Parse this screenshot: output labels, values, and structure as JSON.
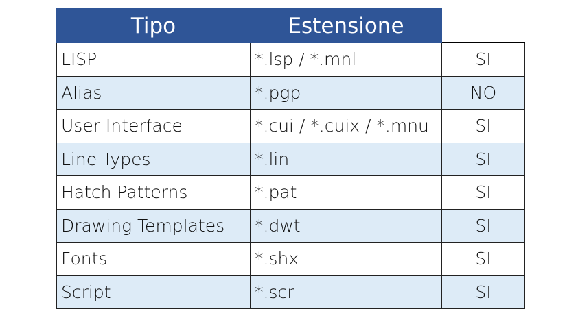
{
  "header": {
    "tipo": "Tipo",
    "estensione": "Estensione"
  },
  "colors": {
    "header": "#2F5597",
    "alt_row": "#DDEBF7"
  },
  "rows": [
    {
      "tipo": "LISP",
      "estensione": "*.lsp / *.mnl",
      "valore": "SI"
    },
    {
      "tipo": "Alias",
      "estensione": "*.pgp",
      "valore": "NO"
    },
    {
      "tipo": "User Interface",
      "estensione": "*.cui / *.cuix / *.mnu",
      "valore": "SI"
    },
    {
      "tipo": "Line Types",
      "estensione": "*.lin",
      "valore": "SI"
    },
    {
      "tipo": "Hatch Patterns",
      "estensione": "*.pat",
      "valore": "SI"
    },
    {
      "tipo": "Drawing Templates",
      "estensione": "*.dwt",
      "valore": "SI"
    },
    {
      "tipo": "Fonts",
      "estensione": "*.shx",
      "valore": "SI"
    },
    {
      "tipo": "Script",
      "estensione": "*.scr",
      "valore": "SI"
    }
  ]
}
